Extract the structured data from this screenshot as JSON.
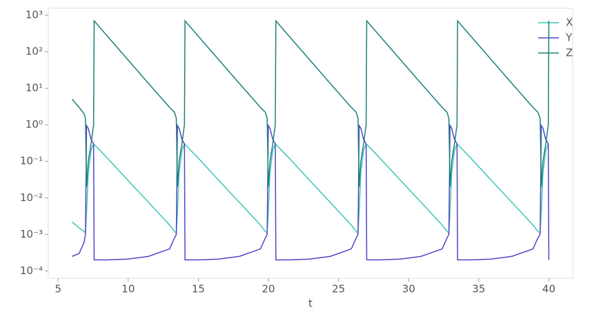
{
  "chart_data": {
    "type": "line",
    "xlabel": "t",
    "yscale": "log",
    "grid": false,
    "legend": "upper right",
    "xlim": [
      4.3,
      41.7
    ],
    "xticks": [
      5,
      10,
      15,
      20,
      25,
      30,
      35,
      40
    ],
    "ylim": [
      6.3e-05,
      1550
    ],
    "yticks": [
      {
        "value": 0.0001,
        "label": "10⁻⁴"
      },
      {
        "value": 0.001,
        "label": "10⁻³"
      },
      {
        "value": 0.01,
        "label": "10⁻²"
      },
      {
        "value": 0.1,
        "label": "10⁻¹"
      },
      {
        "value": 1,
        "label": "10⁰"
      },
      {
        "value": 10,
        "label": "10¹"
      },
      {
        "value": 100,
        "label": "10²"
      },
      {
        "value": 1000,
        "label": "10³"
      }
    ],
    "x": [
      6,
      6.5,
      6.85,
      6.95,
      7.03,
      7.15,
      7.35,
      7.53,
      7.57,
      8.45,
      9.95,
      11.45,
      12.95,
      13.3,
      13.43,
      13.51,
      13.63,
      13.83,
      14.01,
      14.05,
      14.93,
      16.43,
      17.93,
      19.43,
      19.78,
      19.91,
      19.99,
      20.11,
      20.31,
      20.49,
      20.53,
      21.41,
      22.91,
      24.41,
      25.91,
      26.26,
      26.39,
      26.47,
      26.59,
      26.79,
      26.97,
      27.01,
      27.89,
      29.39,
      30.89,
      32.39,
      32.74,
      32.87,
      32.95,
      33.07,
      33.27,
      33.45,
      33.49,
      34.37,
      35.87,
      37.37,
      38.87,
      39.22,
      39.38,
      39.46,
      39.58,
      39.78,
      39.96,
      40.0
    ],
    "series": [
      {
        "name": "X",
        "color": "#3cc5b5",
        "values": [
          0.0022,
          0.0015,
          0.0012,
          0.0011,
          0.004,
          0.05,
          0.2,
          0.3,
          0.29,
          0.13,
          0.031,
          0.0075,
          0.0018,
          0.0012,
          0.0011,
          0.004,
          0.05,
          0.2,
          0.3,
          0.29,
          0.13,
          0.031,
          0.0075,
          0.0018,
          0.0012,
          0.0011,
          0.004,
          0.05,
          0.2,
          0.3,
          0.29,
          0.13,
          0.031,
          0.0075,
          0.0018,
          0.0012,
          0.0011,
          0.004,
          0.05,
          0.2,
          0.3,
          0.29,
          0.13,
          0.031,
          0.0075,
          0.0018,
          0.0012,
          0.0011,
          0.004,
          0.05,
          0.2,
          0.3,
          0.29,
          0.13,
          0.031,
          0.0075,
          0.0018,
          0.0012,
          0.0011,
          0.004,
          0.05,
          0.2,
          0.3,
          0.29
        ]
      },
      {
        "name": "Y",
        "color": "#5044c8",
        "values": [
          0.00025,
          0.0003,
          0.0006,
          0.001,
          0.95,
          0.8,
          0.4,
          0.3,
          0.0002,
          0.0002,
          0.00021,
          0.00025,
          0.0004,
          0.0008,
          0.001,
          0.95,
          0.8,
          0.4,
          0.3,
          0.0002,
          0.0002,
          0.00021,
          0.00025,
          0.0004,
          0.0008,
          0.001,
          0.95,
          0.8,
          0.4,
          0.3,
          0.0002,
          0.0002,
          0.00021,
          0.00025,
          0.0004,
          0.0008,
          0.001,
          0.95,
          0.8,
          0.4,
          0.3,
          0.0002,
          0.0002,
          0.00021,
          0.00025,
          0.0004,
          0.0008,
          0.001,
          0.95,
          0.8,
          0.4,
          0.3,
          0.0002,
          0.0002,
          0.00021,
          0.00025,
          0.0004,
          0.0008,
          0.001,
          0.95,
          0.8,
          0.4,
          0.3,
          0.0002
        ]
      },
      {
        "name": "Z",
        "color": "#1b7f79",
        "values": [
          5,
          3,
          2,
          1.5,
          0.02,
          0.1,
          0.3,
          1,
          700,
          285,
          62,
          13.5,
          3,
          2.2,
          1.5,
          0.02,
          0.1,
          0.3,
          1,
          700,
          285,
          62,
          13.5,
          3,
          2.2,
          1.5,
          0.02,
          0.1,
          0.3,
          1,
          700,
          285,
          62,
          13.5,
          3,
          2.2,
          1.5,
          0.02,
          0.1,
          0.3,
          1,
          700,
          285,
          62,
          13.5,
          3,
          2.2,
          1.5,
          0.02,
          0.1,
          0.3,
          1,
          700,
          285,
          62,
          13.5,
          3,
          2.2,
          1.5,
          0.02,
          0.1,
          0.3,
          1,
          700
        ]
      }
    ]
  }
}
